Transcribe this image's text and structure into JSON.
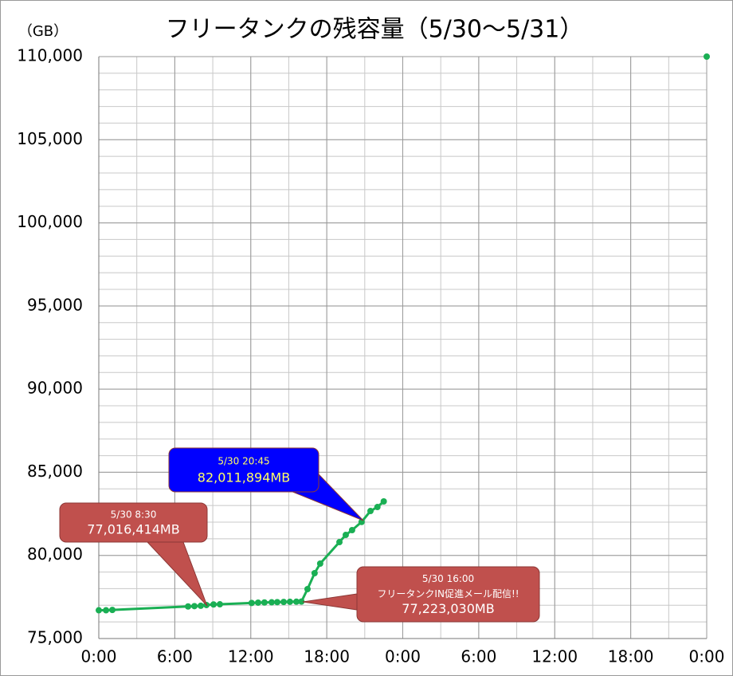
{
  "chart_data": {
    "type": "line",
    "title": "フリータンクの残容量（5/30～5/31）",
    "y_label": "（GB）",
    "xlim": [
      0,
      48
    ],
    "ylim": [
      75000,
      110000
    ],
    "xticks": [
      {
        "value": 0,
        "label": "0:00"
      },
      {
        "value": 6,
        "label": "6:00"
      },
      {
        "value": 12,
        "label": "12:00"
      },
      {
        "value": 18,
        "label": "18:00"
      },
      {
        "value": 24,
        "label": "0:00"
      },
      {
        "value": 30,
        "label": "6:00"
      },
      {
        "value": 36,
        "label": "12:00"
      },
      {
        "value": 42,
        "label": "18:00"
      },
      {
        "value": 48,
        "label": "0:00"
      }
    ],
    "yticks": [
      {
        "value": 75000,
        "label": "75,000"
      },
      {
        "value": 80000,
        "label": "80,000"
      },
      {
        "value": 85000,
        "label": "85,000"
      },
      {
        "value": 90000,
        "label": "90,000"
      },
      {
        "value": 95000,
        "label": "95,000"
      },
      {
        "value": 100000,
        "label": "100,000"
      },
      {
        "value": 105000,
        "label": "105,000"
      },
      {
        "value": 110000,
        "label": "110,000"
      }
    ],
    "grid": true,
    "minor_grid": {
      "x_step": 3,
      "y_step": 1000
    },
    "series": [
      {
        "color": "#1aaf54",
        "x": [
          0,
          0.57,
          1.07,
          7.05,
          7.55,
          8.05,
          8.5,
          9.06,
          9.56,
          12.07,
          12.58,
          13.08,
          13.65,
          14.09,
          14.6,
          15.09,
          15.6,
          16.0,
          16.48,
          17.04,
          17.48,
          19.0,
          19.5,
          20.0,
          20.75,
          21.45,
          22.0,
          22.5
        ],
        "values": [
          76700,
          76700,
          76720,
          76930,
          76950,
          76970,
          77016,
          77050,
          77060,
          77140,
          77160,
          77170,
          77180,
          77190,
          77200,
          77210,
          77215,
          77223,
          77972,
          78931,
          79507,
          80800,
          81232,
          81520,
          82012,
          82670,
          82910,
          83246
        ]
      },
      {
        "color": "#1aaf54",
        "x": [
          48
        ],
        "values": [
          110000
        ]
      }
    ],
    "annotations": [
      {
        "lines": [
          "5/30 8:30",
          "77,016,414MB"
        ],
        "color": "#c0504d"
      },
      {
        "lines": [
          "5/30 20:45",
          "82,011,894MB"
        ],
        "color": "#0000ff"
      },
      {
        "lines": [
          "5/30 16:00",
          "フリータンクIN促進メール配信!!",
          "77,223,030MB"
        ],
        "color": "#c0504d"
      }
    ]
  }
}
